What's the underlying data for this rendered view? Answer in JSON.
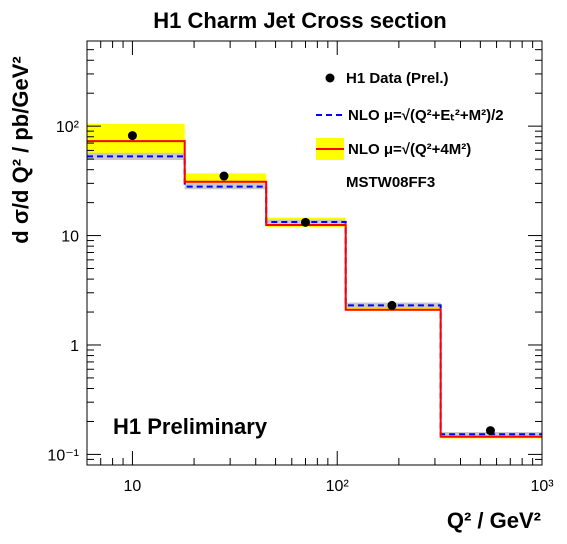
{
  "chart_data": {
    "type": "line",
    "title": "H1 Charm Jet Cross section",
    "xlabel": "Q²  / GeV²",
    "ylabel": "d σ/d Q² / pb/GeV²",
    "xscale": "log",
    "yscale": "log",
    "xlim": [
      6,
      1000
    ],
    "ylim": [
      0.08,
      600
    ],
    "x_tick_labels": [
      "10",
      "10²",
      "10³"
    ],
    "y_tick_labels": [
      "10⁻¹",
      "1",
      "10",
      "10²"
    ],
    "bins": [
      [
        6,
        18
      ],
      [
        18,
        45
      ],
      [
        45,
        110
      ],
      [
        110,
        320
      ],
      [
        320,
        1000
      ]
    ],
    "series": [
      {
        "name": "H1 Data (Prel.)",
        "kind": "points",
        "color": "#000000",
        "x": [
          10,
          28,
          70,
          185,
          560
        ],
        "y": [
          82,
          35,
          13.2,
          2.3,
          0.165
        ]
      },
      {
        "name": "NLO μ=√(Q²+Eₜ²+M²)/2",
        "kind": "step",
        "style": "dashed",
        "color": "#0000ff",
        "band_color": "#c8c8c8",
        "values": [
          53,
          28,
          13.3,
          2.3,
          0.153
        ],
        "band_low": [
          49,
          26.5,
          12.7,
          2.18,
          0.147
        ],
        "band_high": [
          57,
          30,
          14.0,
          2.44,
          0.16
        ]
      },
      {
        "name": "NLO μ=√(Q²+4M²)",
        "kind": "step",
        "style": "solid",
        "color": "#ff0000",
        "band_color": "#ffff00",
        "values": [
          73,
          31,
          12.5,
          2.1,
          0.145
        ],
        "band_low": [
          55,
          29,
          12.0,
          2.05,
          0.14
        ],
        "band_high": [
          105,
          37,
          14.6,
          2.4,
          0.152
        ]
      }
    ],
    "legend": {
      "position": "top-right",
      "pdf_label": "MSTW08FF3"
    },
    "annotations": [
      "H1 Preliminary"
    ],
    "grid": false
  }
}
